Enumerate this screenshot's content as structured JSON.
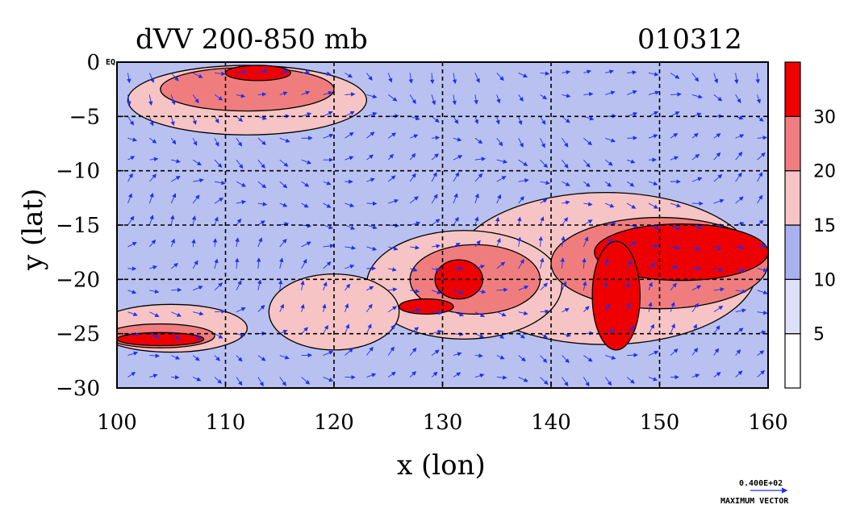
{
  "chart_data": {
    "type": "heatmap",
    "title": "dVV 200-850 mb",
    "date_label": "010312",
    "xlabel": "x (lon)",
    "ylabel": "y (lat)",
    "xlim": [
      100,
      160
    ],
    "ylim": [
      -30,
      0
    ],
    "x_ticks": [
      100,
      110,
      120,
      130,
      140,
      150,
      160
    ],
    "y_ticks": [
      0,
      -5,
      -10,
      -15,
      -20,
      -25,
      -30
    ],
    "grid": true,
    "eq_label": "EQ",
    "colorbar": {
      "levels": [
        0,
        5,
        10,
        15,
        20,
        30
      ],
      "labels": [
        "5",
        "10",
        "15",
        "20",
        "30"
      ],
      "colors": [
        "#ffffff",
        "#dde0f8",
        "#a9b2ee",
        "#f6c4c4",
        "#f07d7d",
        "#ee0000"
      ]
    },
    "field_blobs": [
      {
        "lon": 152,
        "lat": -17.5,
        "rx": 8,
        "ry": 2.6,
        "level": 5
      },
      {
        "lon": 146,
        "lat": -21.5,
        "rx": 2.2,
        "ry": 5,
        "level": 5
      },
      {
        "lon": 131.5,
        "lat": -20.0,
        "rx": 2.2,
        "ry": 1.8,
        "level": 5
      },
      {
        "lon": 128.5,
        "lat": -22.5,
        "rx": 2.5,
        "ry": 0.7,
        "level": 5
      },
      {
        "lon": 104,
        "lat": -25.5,
        "rx": 4,
        "ry": 0.6,
        "level": 5
      },
      {
        "lon": 113,
        "lat": -1.0,
        "rx": 3,
        "ry": 0.7,
        "level": 5
      },
      {
        "lon": 150,
        "lat": -18.5,
        "rx": 10,
        "ry": 4.2,
        "level": 4
      },
      {
        "lon": 133,
        "lat": -20.0,
        "rx": 6,
        "ry": 3.2,
        "level": 4
      },
      {
        "lon": 104,
        "lat": -25.2,
        "rx": 5,
        "ry": 1.1,
        "level": 4
      },
      {
        "lon": 112,
        "lat": -2.5,
        "rx": 8,
        "ry": 2.0,
        "level": 4
      },
      {
        "lon": 145,
        "lat": -19,
        "rx": 14,
        "ry": 7,
        "level": 3
      },
      {
        "lon": 132,
        "lat": -20.5,
        "rx": 9,
        "ry": 5,
        "level": 3
      },
      {
        "lon": 105,
        "lat": -24.5,
        "rx": 7,
        "ry": 2.2,
        "level": 3
      },
      {
        "lon": 112,
        "lat": -3.5,
        "rx": 11,
        "ry": 3.2,
        "level": 3
      },
      {
        "lon": 120,
        "lat": -23,
        "rx": 6,
        "ry": 3.5,
        "level": 3
      }
    ],
    "vector_legend": {
      "value": "0.400E+02",
      "label": "MAXIMUM VECTOR"
    }
  }
}
